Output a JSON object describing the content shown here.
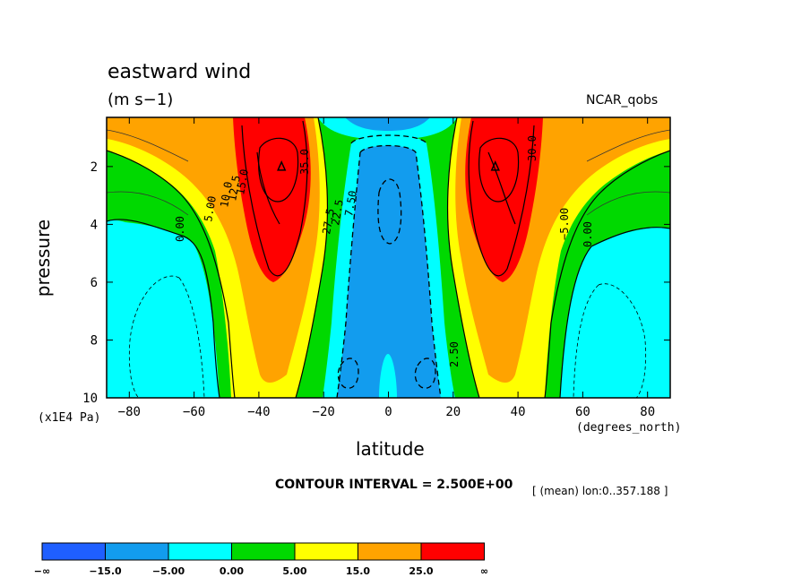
{
  "chart_data": {
    "type": "contour",
    "title": "eastward wind",
    "units": "(m s−1)",
    "dataset_label": "NCAR_qobs",
    "xlabel": "latitude",
    "xunits": "(degrees_north)",
    "ylabel": "pressure",
    "yunits": "(x1E4 Pa)",
    "x_ticks": [
      -80,
      -60,
      -40,
      -20,
      0,
      20,
      40,
      60,
      80
    ],
    "y_ticks": [
      2,
      4,
      6,
      8,
      10
    ],
    "xlim": [
      -87,
      87
    ],
    "ylim_top_to_bottom": [
      0.3,
      10
    ],
    "contour_interval_text": "CONTOUR INTERVAL = 2.500E+00",
    "averaging_note": "[ (mean) lon:0..357.188 ]",
    "contour_labels": [
      "0.00",
      "5.00",
      "10.0",
      "12.5",
      "15.0",
      "35.0",
      "30.0",
      "27.5",
      "22.5",
      "7.50",
      "2.50",
      "−5.00",
      "0.00"
    ],
    "jets": [
      {
        "hemisphere": "south",
        "lat": -33,
        "pressure": 2,
        "max_u": 40
      },
      {
        "hemisphere": "north",
        "lat": 33,
        "pressure": 2,
        "max_u": 40
      }
    ],
    "colorbar": {
      "levels": [
        "−∞",
        "−15.0",
        "−5.00",
        "0.00",
        "5.00",
        "15.0",
        "25.0",
        "∞"
      ],
      "colors": [
        "#1f5fff",
        "#129cee",
        "#00ffff",
        "#00d900",
        "#ffff00",
        "#ffa300",
        "#ff0000"
      ]
    }
  }
}
